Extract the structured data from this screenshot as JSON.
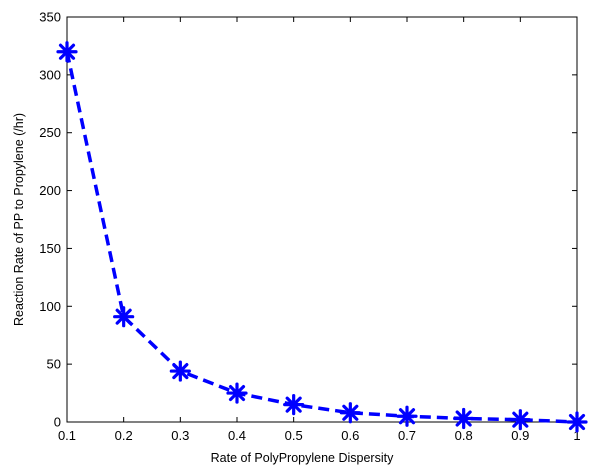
{
  "chart_data": {
    "type": "line",
    "title": "",
    "xlabel": "Rate of PolyPropylene Dispersity",
    "ylabel": "Reaction Rate of PP to Propylene (/hr)",
    "xlim": [
      0.1,
      1
    ],
    "ylim": [
      0,
      350
    ],
    "x_ticks": [
      "0.1",
      "0.2",
      "0.3",
      "0.4",
      "0.5",
      "0.6",
      "0.7",
      "0.8",
      "0.9",
      "1"
    ],
    "x_tick_values": [
      0.1,
      0.2,
      0.3,
      0.4,
      0.5,
      0.6,
      0.7,
      0.8,
      0.9,
      1.0
    ],
    "y_ticks": [
      "0",
      "50",
      "100",
      "150",
      "200",
      "250",
      "300",
      "350"
    ],
    "y_tick_values": [
      0,
      50,
      100,
      150,
      200,
      250,
      300,
      350
    ],
    "grid": false,
    "legend": "none",
    "series": [
      {
        "x": [
          0.1,
          0.2,
          0.3,
          0.4,
          0.5,
          0.6,
          0.7,
          0.8,
          0.9,
          1.0
        ],
        "values": [
          320,
          91,
          44,
          25,
          15,
          8,
          5,
          3,
          2,
          0
        ],
        "color": "#0000ff",
        "line_style": "dashed",
        "marker": "asterisk"
      }
    ]
  }
}
